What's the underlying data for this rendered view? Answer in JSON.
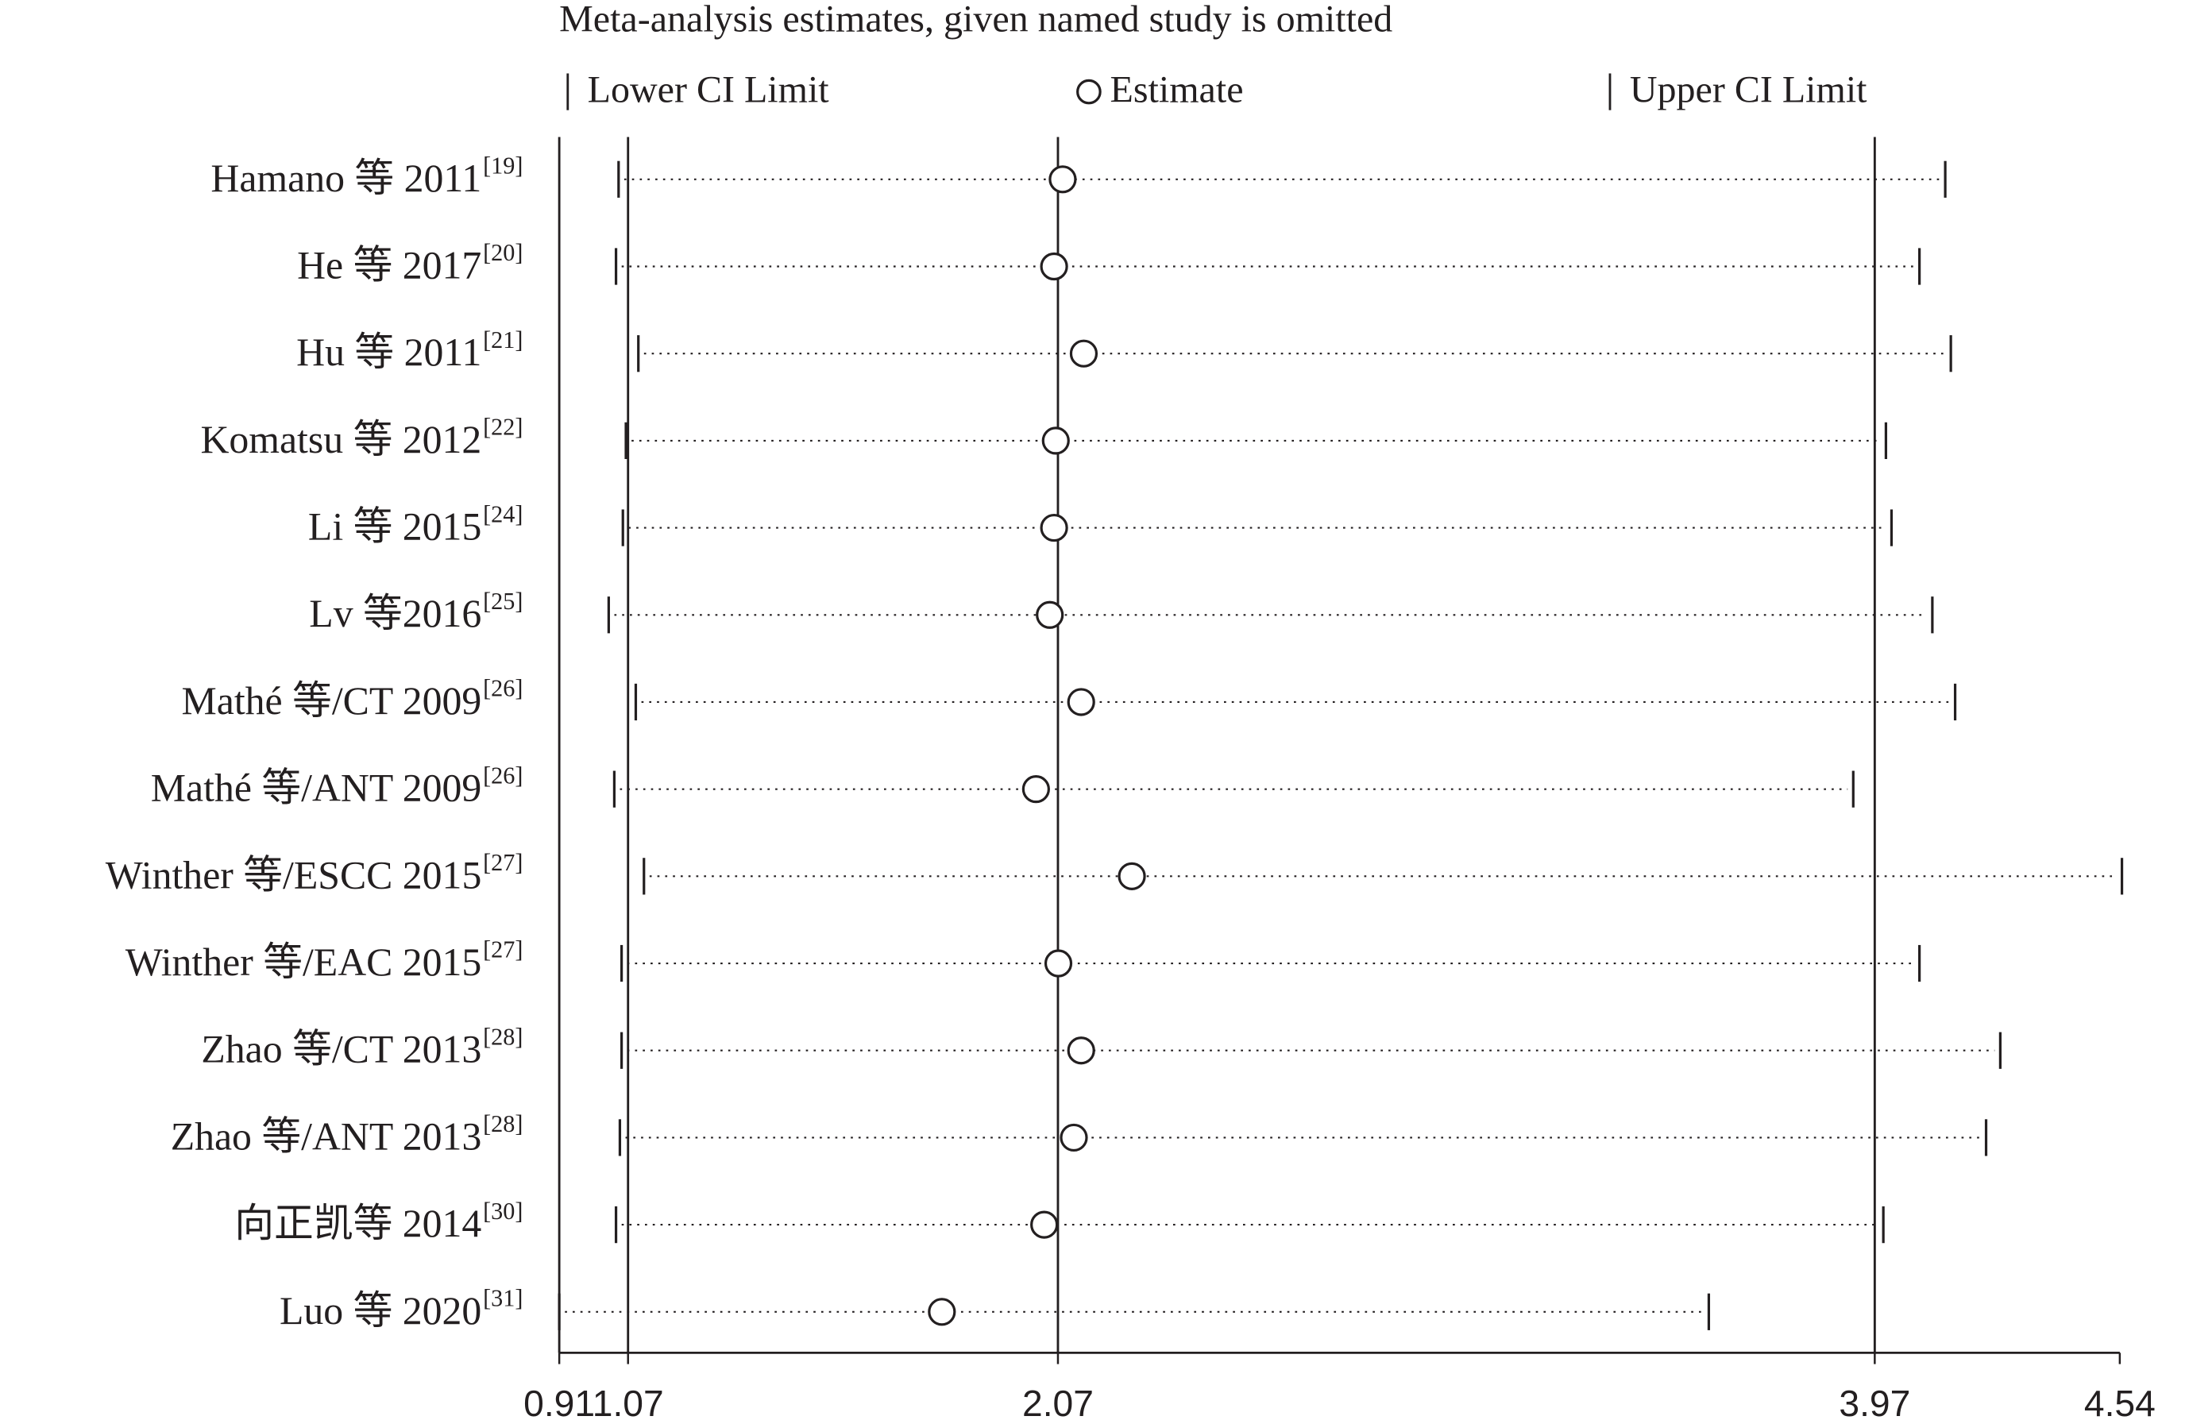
{
  "chart_data": {
    "type": "ci-plot",
    "title": "Meta-analysis estimates, given named study is omitted",
    "categories": [
      "Hamano 等 2011",
      "He 等 2017",
      "Hu 等 2011",
      "Komatsu 等 2012",
      "Li 等 2015",
      "Lv 等2016",
      "Mathé 等/CT 2009",
      "Mathé 等/ANT 2009",
      "Winther 等/ESCC 2015",
      "Winther 等/EAC 2015",
      "Zhao 等/CT 2013",
      "Zhao 等/ANT 2013",
      "向正凯等 2014",
      "Luo 等 2020"
    ],
    "category_refs": [
      "[19]",
      "[20]",
      "[21]",
      "[22]",
      "[24]",
      "[25]",
      "[26]",
      "[26]",
      "[27]",
      "[27]",
      "[28]",
      "[28]",
      "[30]",
      "[31]"
    ],
    "series": [
      {
        "name": "Lower CI Limit",
        "values": [
          1.048,
          1.042,
          1.094,
          1.065,
          1.058,
          1.025,
          1.088,
          1.038,
          1.107,
          1.055,
          1.055,
          1.051,
          1.042,
          0.91
        ]
      },
      {
        "name": "Estimate",
        "values": [
          2.081,
          2.061,
          2.13,
          2.065,
          2.061,
          2.051,
          2.124,
          2.019,
          2.242,
          2.071,
          2.124,
          2.107,
          2.038,
          1.8
        ]
      },
      {
        "name": "Upper CI Limit",
        "values": [
          4.134,
          4.074,
          4.147,
          3.996,
          4.009,
          4.104,
          4.157,
          3.92,
          4.545,
          4.074,
          4.262,
          4.229,
          3.99,
          3.584
        ]
      }
    ],
    "xlim": [
      0.91,
      4.54
    ],
    "xticks": [
      0.91,
      1.07,
      2.07,
      3.97,
      4.54
    ]
  }
}
